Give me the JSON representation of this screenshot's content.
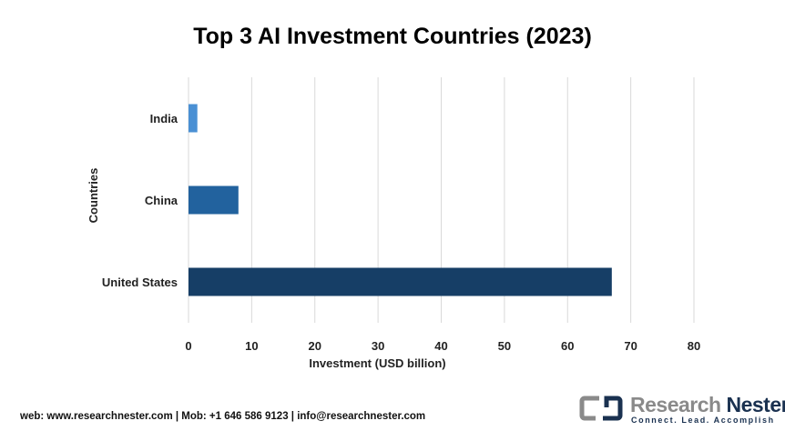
{
  "chart_data": {
    "type": "bar",
    "orientation": "horizontal",
    "title": "Top 3 AI Investment Countries (2023)",
    "xlabel": "Investment (USD billion)",
    "ylabel": "Countries",
    "categories": [
      "India",
      "China",
      "United States"
    ],
    "values": [
      1.4,
      7.9,
      67.0
    ],
    "colors": [
      "#4a90d4",
      "#22629e",
      "#163e66"
    ],
    "xlim": [
      0,
      80
    ],
    "xticks": [
      0,
      10,
      20,
      30,
      40,
      50,
      60,
      70,
      80
    ],
    "grid": true
  },
  "footer": "web: www.researchnester.com | Mob: +1 646 586 9123 | info@researchnester.com",
  "logo": {
    "name1": "Research",
    "name2": "Nester",
    "tagline": "Connect. Lead. Accomplish"
  }
}
